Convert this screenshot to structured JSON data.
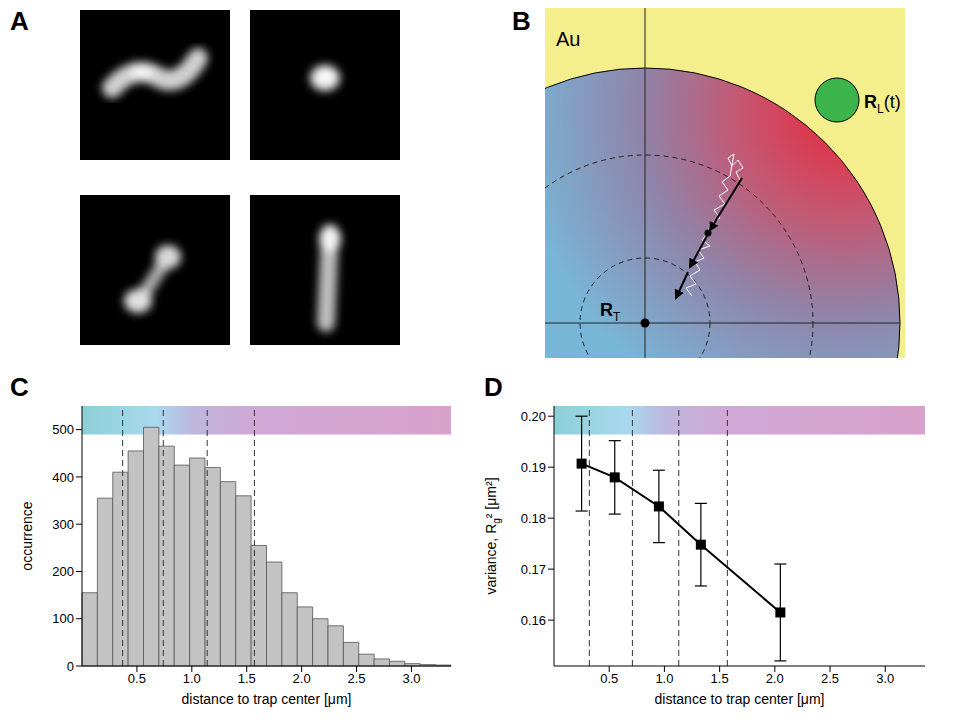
{
  "panel_labels": [
    "A",
    "B",
    "C",
    "D"
  ],
  "diagram": {
    "material": "Au",
    "laser": {
      "symbol": "R",
      "sub": "L",
      "suffix": "(t)"
    },
    "trap": {
      "symbol": "R",
      "sub": "T"
    }
  },
  "chart_data": [
    {
      "type": "histogram",
      "xlabel": "distance to trap center [μm]",
      "ylabel": "occurrence",
      "bins": [
        0,
        0.14,
        0.28,
        0.42,
        0.56,
        0.7,
        0.84,
        0.98,
        1.12,
        1.26,
        1.4,
        1.54,
        1.68,
        1.82,
        1.96,
        2.1,
        2.24,
        2.38,
        2.52,
        2.66,
        2.8,
        2.94,
        3.08,
        3.22,
        3.36
      ],
      "counts": [
        155,
        355,
        410,
        455,
        505,
        465,
        425,
        440,
        420,
        390,
        360,
        255,
        220,
        155,
        125,
        100,
        85,
        50,
        25,
        15,
        10,
        5,
        3,
        2
      ],
      "color": "#c3c3c3",
      "xlim": [
        0,
        3.36
      ],
      "xticks": [
        0.5,
        {
          "value": 1,
          "label": "1.0"
        },
        1.5,
        {
          "value": 2,
          "label": "2.0"
        },
        2.5,
        {
          "value": 3,
          "label": "3.0"
        }
      ],
      "ylim": [
        0,
        550
      ],
      "yticks": [
        0,
        100,
        200,
        300,
        400,
        500
      ],
      "boundaries": [
        0.37,
        0.74,
        1.14,
        1.57
      ]
    },
    {
      "type": "line",
      "xlabel": "distance to trap center [μm]",
      "ylabel": {
        "text": "variance, R",
        "sub": "g",
        "suffix": "² [μm²]"
      },
      "x": [
        0.25,
        0.55,
        0.95,
        1.33,
        2.05
      ],
      "values": [
        0.1907,
        0.188,
        0.1823,
        0.1748,
        0.1615
      ],
      "errors": [
        0.0093,
        0.0072,
        0.0071,
        0.0081,
        0.0095
      ],
      "color": "#000000",
      "marker": "square",
      "xlim": [
        0,
        3.36
      ],
      "xticks": [
        0.5,
        {
          "value": 1,
          "label": "1.0"
        },
        1.5,
        {
          "value": 2,
          "label": "2.0"
        },
        2.5,
        {
          "value": 3,
          "label": "3.0"
        }
      ],
      "ylim": [
        0.151,
        0.202
      ],
      "yticks": [
        0.16,
        0.17,
        0.18,
        0.19,
        {
          "value": 0.2,
          "label": "0.20"
        }
      ],
      "boundaries": [
        0.32,
        0.71,
        1.13,
        1.57
      ]
    }
  ]
}
